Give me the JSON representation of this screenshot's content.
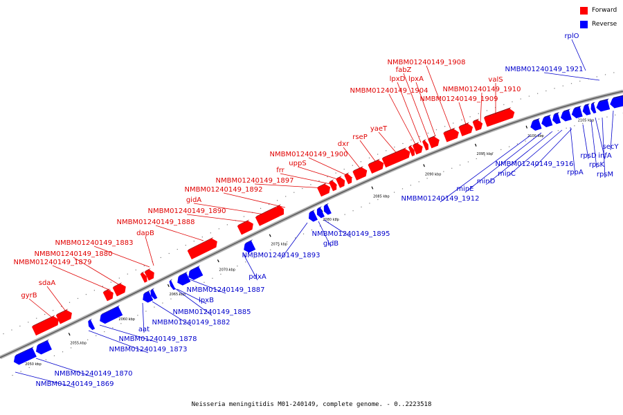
{
  "legend": {
    "forward_label": "Forward",
    "reverse_label": "Reverse",
    "forward_color": "#ff0000",
    "reverse_color": "#0000ff"
  },
  "caption": "Neisseria meningitidis M01-240149, complete genome. - 0..2223518",
  "ticks": [
    "2050 kbp",
    "2055 kbp",
    "2060 kbp",
    "2065 kbp",
    "2070 kbp",
    "2075 kbp",
    "2080 kbp",
    "2085 kbp",
    "2090 kbp",
    "2095 kbp",
    "2100 kbp",
    "2105 kbp"
  ],
  "forward_genes": [
    "gyrB",
    "sdaA",
    "NMBM01240149_1879",
    "NMBM01240149_1880",
    "NMBM01240149_1883",
    "dapB",
    "NMBM01240149_1888",
    "NMBM01240149_1890",
    "gidA",
    "NMBM01240149_1892",
    "NMBM01240149_1897",
    "frr",
    "uppS",
    "NMBM01240149_1900",
    "dxr",
    "rseP",
    "yaeT",
    "NMBM01240149_1904",
    "lpxD",
    "fabZ",
    "lpxA",
    "NMBM01240149_1908",
    "NMBM01240149_1909",
    "NMBM01240149_1910",
    "valS"
  ],
  "reverse_genes": [
    "NMBM01240149_1869",
    "NMBM01240149_1870",
    "NMBM01240149_1873",
    "NMBM01240149_1878",
    "aat",
    "NMBM01240149_1882",
    "NMBM01240149_1885",
    "lpxB",
    "NMBM01240149_1887",
    "pdxA",
    "NMBM01240149_1893",
    "gidB",
    "NMBM01240149_1895",
    "NMBM01240149_1912",
    "minE",
    "minD",
    "minC",
    "NMBM01240149_1916",
    "rpoA",
    "rpsD",
    "rpsK",
    "infA",
    "rpsM",
    "secY",
    "NMBM01240149_1921",
    "rplO"
  ]
}
